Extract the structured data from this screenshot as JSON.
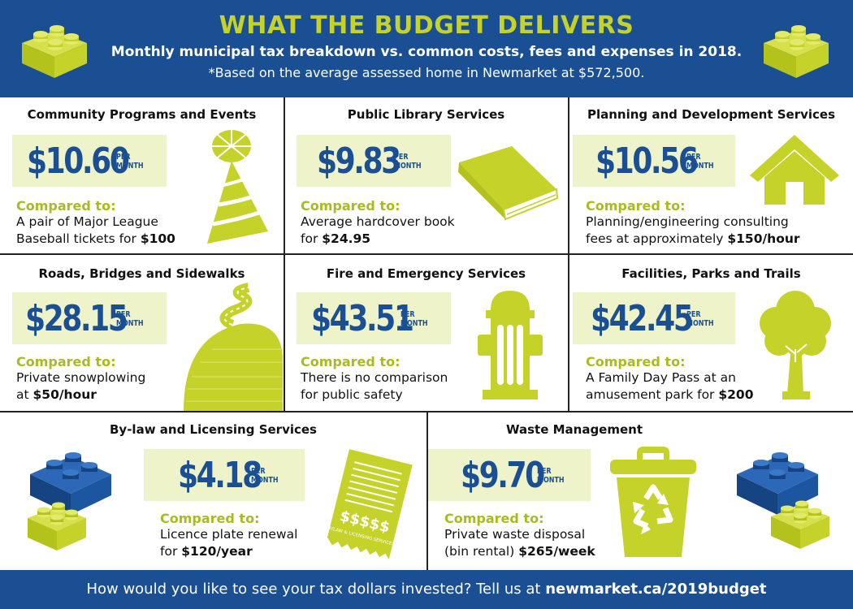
{
  "header": {
    "title": "WHAT THE BUDGET DELIVERS",
    "subtitle": "Monthly municipal tax breakdown vs. common costs, fees and expenses in 2018.",
    "note": "*Based on the average assessed home in Newmarket at $572,500."
  },
  "per_line1": "PER",
  "per_line2": "MONTH",
  "compared_label": "Compared to:",
  "cells": [
    {
      "title": "Community Programs and Events",
      "amount": "$10.60",
      "line1": "A pair of Major League",
      "line2_pre": "Baseball tickets for ",
      "line2_bold": "$100"
    },
    {
      "title": "Public Library Services",
      "amount": "$9.83",
      "line1": "Average hardcover book",
      "line2_pre": "for ",
      "line2_bold": "$24.95"
    },
    {
      "title": "Planning and Development Services",
      "amount": "$10.56",
      "line1": "Planning/engineering consulting",
      "line2_pre": "fees at approximately ",
      "line2_bold": "$150/hour"
    },
    {
      "title": "Roads, Bridges and Sidewalks",
      "amount": "$28.15",
      "line1": "Private snowplowing",
      "line2_pre": "at ",
      "line2_bold": "$50/hour"
    },
    {
      "title": "Fire and Emergency Services",
      "amount": "$43.51",
      "line1": "There is no comparison",
      "line2_pre": "for public safety",
      "line2_bold": ""
    },
    {
      "title": "Facilities, Parks and Trails",
      "amount": "$42.45",
      "line1": "A Family Day Pass at an",
      "line2_pre": "amusement park for ",
      "line2_bold": "$200"
    },
    {
      "title": "By-law and Licensing Services",
      "amount": "$4.18",
      "line1": "Licence plate renewal",
      "line2_pre": "for ",
      "line2_bold": "$120/year"
    },
    {
      "title": "Waste Management",
      "amount": "$9.70",
      "line1": "Private waste disposal",
      "line2_pre": "(bin rental) ",
      "line2_bold": "$265/week"
    }
  ],
  "receipt_text": "$$$$$",
  "receipt_caption": "BYLAW & LICENSING SERVICES",
  "footer": {
    "pre": "How would you like to see your tax dollars invested? Tell us at ",
    "link": "newmarket.ca/2019budget"
  },
  "colors": {
    "blue": "#1a4f94",
    "lime": "#c5d22a",
    "pale": "#eef3c9"
  }
}
